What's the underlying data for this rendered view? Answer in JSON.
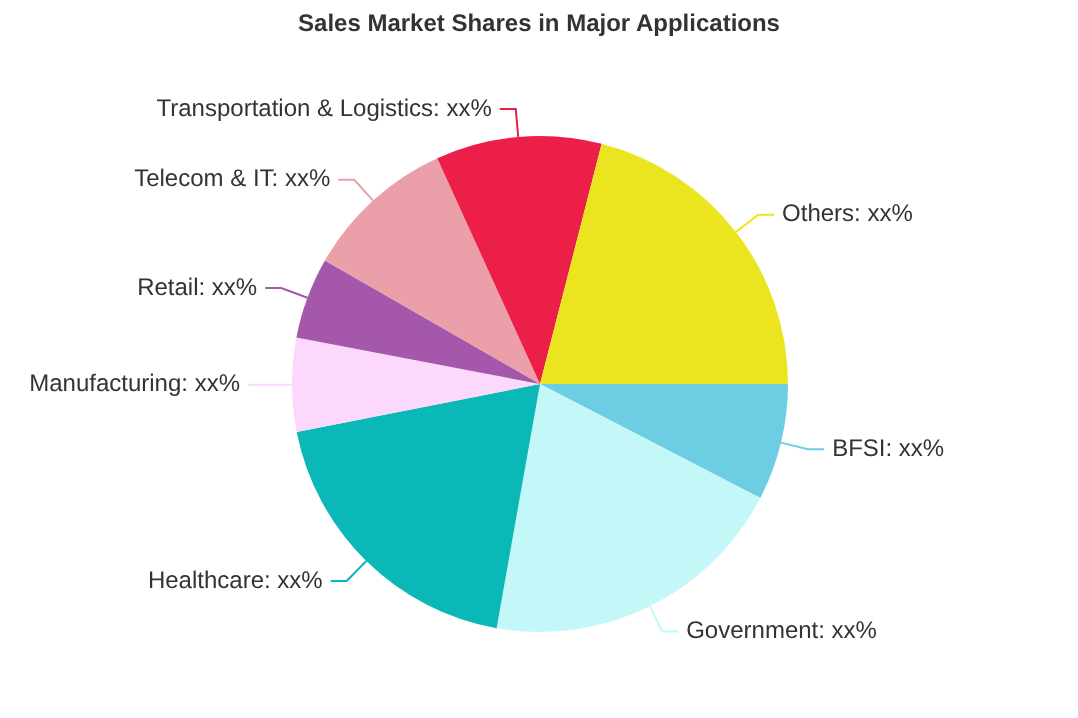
{
  "chart_data": {
    "type": "pie",
    "title": "Sales Market Shares in Major Applications",
    "categories": [
      "BFSI",
      "Government",
      "Healthcare",
      "Manufacturing",
      "Retail",
      "Telecom & IT",
      "Transportation & Logistics",
      "Others"
    ],
    "values": [
      7.6,
      20.2,
      19.1,
      6.1,
      5.3,
      9.9,
      10.8,
      21.0
    ],
    "colors": [
      "#6ccde3",
      "#c4f7f7",
      "#0ab8b8",
      "#fcd9fc",
      "#a457ab",
      "#eb9fa8",
      "#eb1f48",
      "#ebe520"
    ],
    "value_labels": [
      "xx%",
      "xx%",
      "xx%",
      "xx%",
      "xx%",
      "xx%",
      "xx%",
      "xx%"
    ]
  }
}
